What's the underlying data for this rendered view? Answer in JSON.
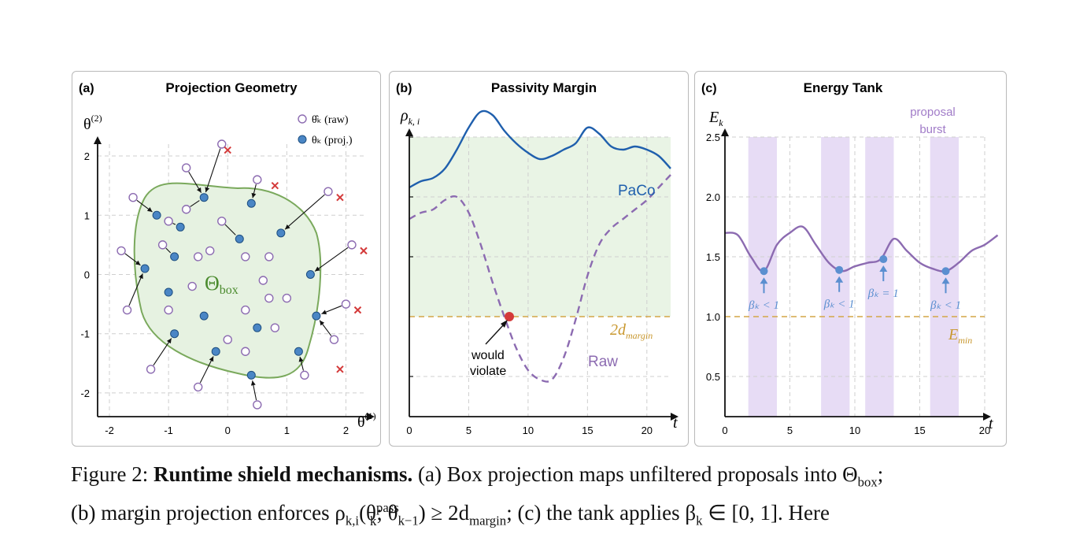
{
  "panels": {
    "a": {
      "tag": "(a)",
      "title": "Projection Geometry",
      "ylabel_main": "θ",
      "ylabel_sup": "(2)",
      "xlabel_main": "θ",
      "xlabel_sup": "(1)",
      "legend_raw": "θ̂ₖ (raw)",
      "legend_proj": "θₖ (proj.)",
      "region_label_main": "Θ",
      "region_label_sub": "box",
      "xticks": [
        "-2",
        "-1",
        "0",
        "1",
        "2"
      ],
      "yticks": [
        "2",
        "1",
        "0",
        "-1",
        "-2"
      ]
    },
    "b": {
      "tag": "(b)",
      "title": "Passivity Margin",
      "ylabel_main": "ρ",
      "ylabel_sub": "k, i",
      "xlabel": "t",
      "series_paco": "PaCo",
      "series_raw": "Raw",
      "margin_main": "2d",
      "margin_sub": "margin",
      "annotation_line1": "would",
      "annotation_line2": "violate",
      "xticks": [
        "0",
        "5",
        "10",
        "15",
        "20"
      ]
    },
    "c": {
      "tag": "(c)",
      "title": "Energy Tank",
      "ylabel_main": "E",
      "ylabel_sub": "k",
      "xlabel": "t",
      "burst_line1": "proposal",
      "burst_line2": "burst",
      "emin_main": "E",
      "emin_sub": "min",
      "beta_labels": [
        "βₖ < 1",
        "βₖ < 1",
        "βₖ = 1",
        "βₖ < 1"
      ],
      "xticks": [
        "0",
        "5",
        "10",
        "15",
        "20"
      ],
      "yticks": [
        "2.5",
        "2.0",
        "1.5",
        "1.0",
        "0.5"
      ]
    }
  },
  "caption": {
    "line1_prefix": "Figure 2: ",
    "line1_bold": "Runtime shield mechanisms.",
    "line1_rest": " (a) Box projection maps unfiltered proposals into Θ",
    "line1_sub": "box",
    "line1_end": ";",
    "line2_a": "(b) margin projection enforces ρ",
    "line2_sub1": "k,i",
    "line2_b": "(θ",
    "line2_sup": "pass",
    "line2_sub2": "k",
    "line2_c": "; θ",
    "line2_sub3": "k−1",
    "line2_d": ") ≥ 2d",
    "line2_sub4": "margin",
    "line2_e": "; (c) the tank applies β",
    "line2_sub5": "k",
    "line2_f": " ∈ [0, 1]. Here"
  },
  "colors": {
    "paco": "#1f5fad",
    "raw_purple": "#8c6bb1",
    "margin": "#d4a646",
    "violate_dot": "#d43a3a",
    "region_fill": "#e6f2e1",
    "region_edge": "#7aa95c",
    "proj_point": "#4a86c5",
    "cross": "#d43a3a",
    "burst": "#e7dcf5",
    "tank_line": "#8c6bb1",
    "beta": "#5b8fd0"
  },
  "chart_data": [
    {
      "type": "scatter",
      "title": "Projection Geometry",
      "xlabel": "θ(1)",
      "ylabel": "θ(2)",
      "xlim": [
        -2.2,
        2.3
      ],
      "ylim": [
        -2.4,
        2.2
      ],
      "series": [
        {
          "name": "θ̂ₖ (raw)",
          "points": [
            [
              -1.6,
              1.3
            ],
            [
              -1.8,
              0.4
            ],
            [
              -1.7,
              -0.6
            ],
            [
              -1.3,
              -1.6
            ],
            [
              -0.7,
              1.8
            ],
            [
              -0.5,
              -1.9
            ],
            [
              -0.1,
              2.2
            ],
            [
              0.5,
              1.6
            ],
            [
              1.7,
              1.4
            ],
            [
              2.1,
              0.5
            ],
            [
              2.0,
              -0.5
            ],
            [
              1.8,
              -1.1
            ],
            [
              1.3,
              -1.7
            ],
            [
              0.5,
              -2.2
            ],
            [
              -1.0,
              0.9
            ],
            [
              -1.1,
              0.5
            ],
            [
              -0.7,
              1.1
            ],
            [
              -0.1,
              0.9
            ],
            [
              -0.3,
              0.4
            ],
            [
              -0.5,
              0.3
            ],
            [
              0.3,
              0.3
            ],
            [
              0.7,
              0.3
            ],
            [
              0.6,
              -0.1
            ],
            [
              -0.6,
              -0.2
            ],
            [
              -1.0,
              -0.6
            ],
            [
              0.7,
              -0.4
            ],
            [
              1.0,
              -0.4
            ],
            [
              0.3,
              -0.6
            ],
            [
              0.8,
              -0.9
            ],
            [
              0.3,
              -1.3
            ],
            [
              0.0,
              -1.1
            ]
          ]
        },
        {
          "name": "θₖ (proj.)",
          "points": [
            [
              -1.2,
              1.0
            ],
            [
              -1.4,
              0.1
            ],
            [
              -1.0,
              -0.3
            ],
            [
              -0.9,
              -1.0
            ],
            [
              -0.4,
              1.3
            ],
            [
              -0.2,
              -1.3
            ],
            [
              0.4,
              1.2
            ],
            [
              0.4,
              -1.7
            ],
            [
              1.2,
              -1.3
            ],
            [
              1.4,
              0.0
            ],
            [
              1.5,
              -0.7
            ],
            [
              0.9,
              0.7
            ],
            [
              -0.8,
              0.8
            ],
            [
              -0.9,
              0.3
            ],
            [
              0.2,
              0.6
            ],
            [
              -0.4,
              -0.7
            ],
            [
              0.5,
              -0.9
            ]
          ]
        }
      ]
    },
    {
      "type": "line",
      "title": "Passivity Margin",
      "xlabel": "t",
      "ylabel": "ρk,i",
      "xlim": [
        0,
        22
      ],
      "series": [
        {
          "name": "PaCo",
          "x": [
            0,
            1,
            2,
            3,
            4,
            5,
            6,
            7,
            8,
            9,
            10,
            11,
            12,
            13,
            14,
            15,
            16,
            17,
            18,
            19,
            20,
            21,
            22
          ],
          "y": [
            3.4,
            3.5,
            3.55,
            3.7,
            4.0,
            4.35,
            4.6,
            4.55,
            4.3,
            4.1,
            3.95,
            3.85,
            3.9,
            4.0,
            4.1,
            4.35,
            4.25,
            4.05,
            4.0,
            4.05,
            4.0,
            3.9,
            3.7
          ]
        },
        {
          "name": "Raw",
          "x": [
            0,
            1,
            2,
            3,
            4,
            5,
            6,
            7,
            8,
            9,
            10,
            11,
            12,
            13,
            14,
            15,
            16,
            17,
            18,
            19,
            20,
            21,
            22
          ],
          "y": [
            2.9,
            3.0,
            3.05,
            3.2,
            3.25,
            3.0,
            2.5,
            1.9,
            1.35,
            0.85,
            0.5,
            0.35,
            0.35,
            0.7,
            1.3,
            2.0,
            2.5,
            2.75,
            2.9,
            3.05,
            3.2,
            3.4,
            3.6
          ]
        }
      ]
    },
    {
      "type": "line",
      "title": "Energy Tank",
      "xlabel": "t",
      "ylabel": "Ek",
      "xlim": [
        0,
        21
      ],
      "ylim": [
        0.2,
        2.6
      ],
      "series": [
        {
          "name": "Ek",
          "x": [
            0,
            1,
            2,
            3,
            4,
            5,
            6,
            7,
            8,
            9,
            10,
            11,
            12,
            13,
            14,
            15,
            16,
            17,
            18,
            19,
            20,
            21
          ],
          "y": [
            1.7,
            1.68,
            1.5,
            1.38,
            1.6,
            1.7,
            1.75,
            1.6,
            1.45,
            1.38,
            1.42,
            1.45,
            1.48,
            1.65,
            1.55,
            1.45,
            1.4,
            1.38,
            1.45,
            1.55,
            1.6,
            1.68
          ]
        }
      ],
      "reference_lines": [
        {
          "name": "Emin",
          "y": 1.0
        }
      ],
      "markers": [
        {
          "x": 3,
          "y": 1.38
        },
        {
          "x": 8.8,
          "y": 1.39
        },
        {
          "x": 12.2,
          "y": 1.48
        },
        {
          "x": 17,
          "y": 1.38
        }
      ]
    }
  ]
}
